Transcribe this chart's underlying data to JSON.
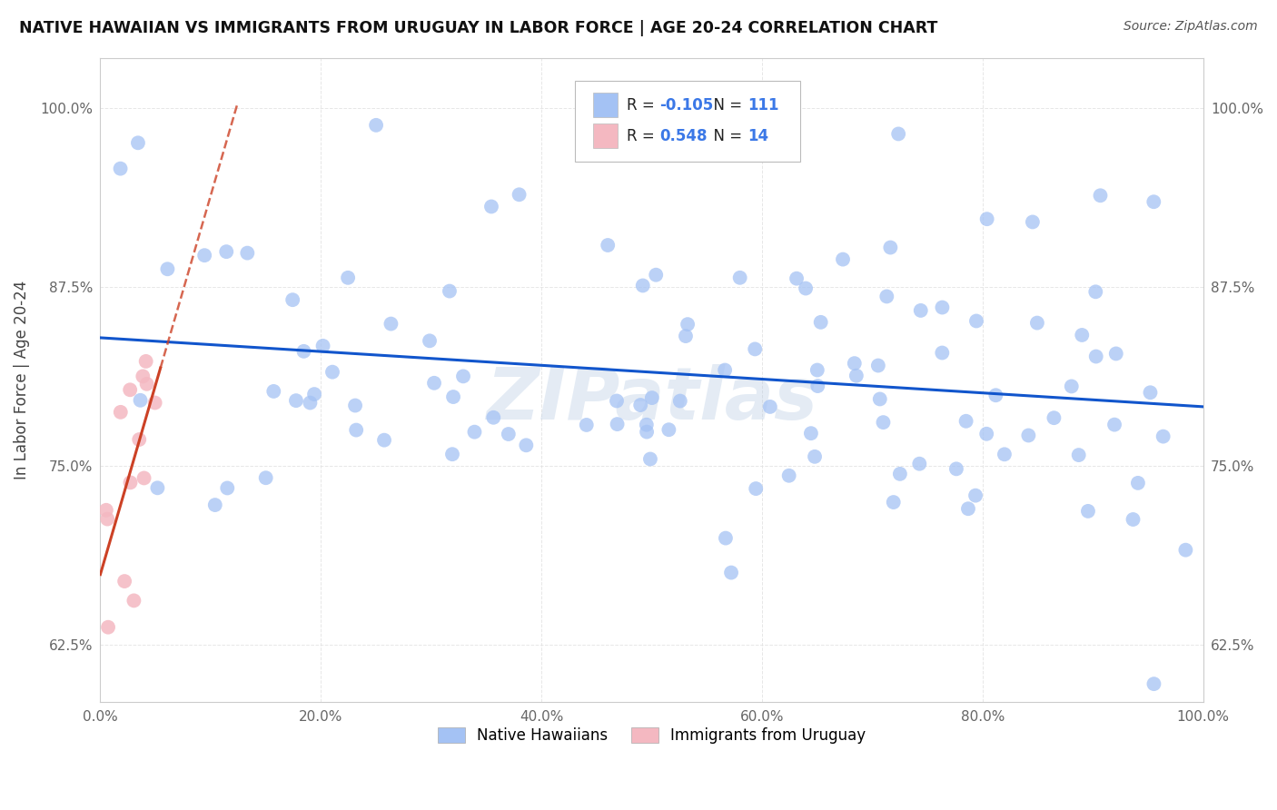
{
  "title": "NATIVE HAWAIIAN VS IMMIGRANTS FROM URUGUAY IN LABOR FORCE | AGE 20-24 CORRELATION CHART",
  "source": "Source: ZipAtlas.com",
  "xlabel": "",
  "ylabel": "In Labor Force | Age 20-24",
  "xlim": [
    0.0,
    1.0
  ],
  "ylim_low": 0.585,
  "ylim_high": 1.035,
  "xtick_labels": [
    "0.0%",
    "20.0%",
    "40.0%",
    "60.0%",
    "80.0%",
    "100.0%"
  ],
  "xtick_values": [
    0.0,
    0.2,
    0.4,
    0.6,
    0.8,
    1.0
  ],
  "ytick_labels": [
    "62.5%",
    "75.0%",
    "87.5%",
    "100.0%"
  ],
  "ytick_values": [
    0.625,
    0.75,
    0.875,
    1.0
  ],
  "blue_color": "#a4c2f4",
  "pink_color": "#f4b8c1",
  "blue_line_color": "#1155cc",
  "pink_line_color": "#cc4125",
  "R_blue_str": "-0.105",
  "N_blue_str": "111",
  "R_pink_str": "0.548",
  "N_pink_str": "14",
  "watermark": "ZIPatlas",
  "background_color": "#ffffff",
  "grid_color": "#e0e0e0",
  "legend_label_blue": "Native Hawaiians",
  "legend_label_pink": "Immigrants from Uruguay"
}
